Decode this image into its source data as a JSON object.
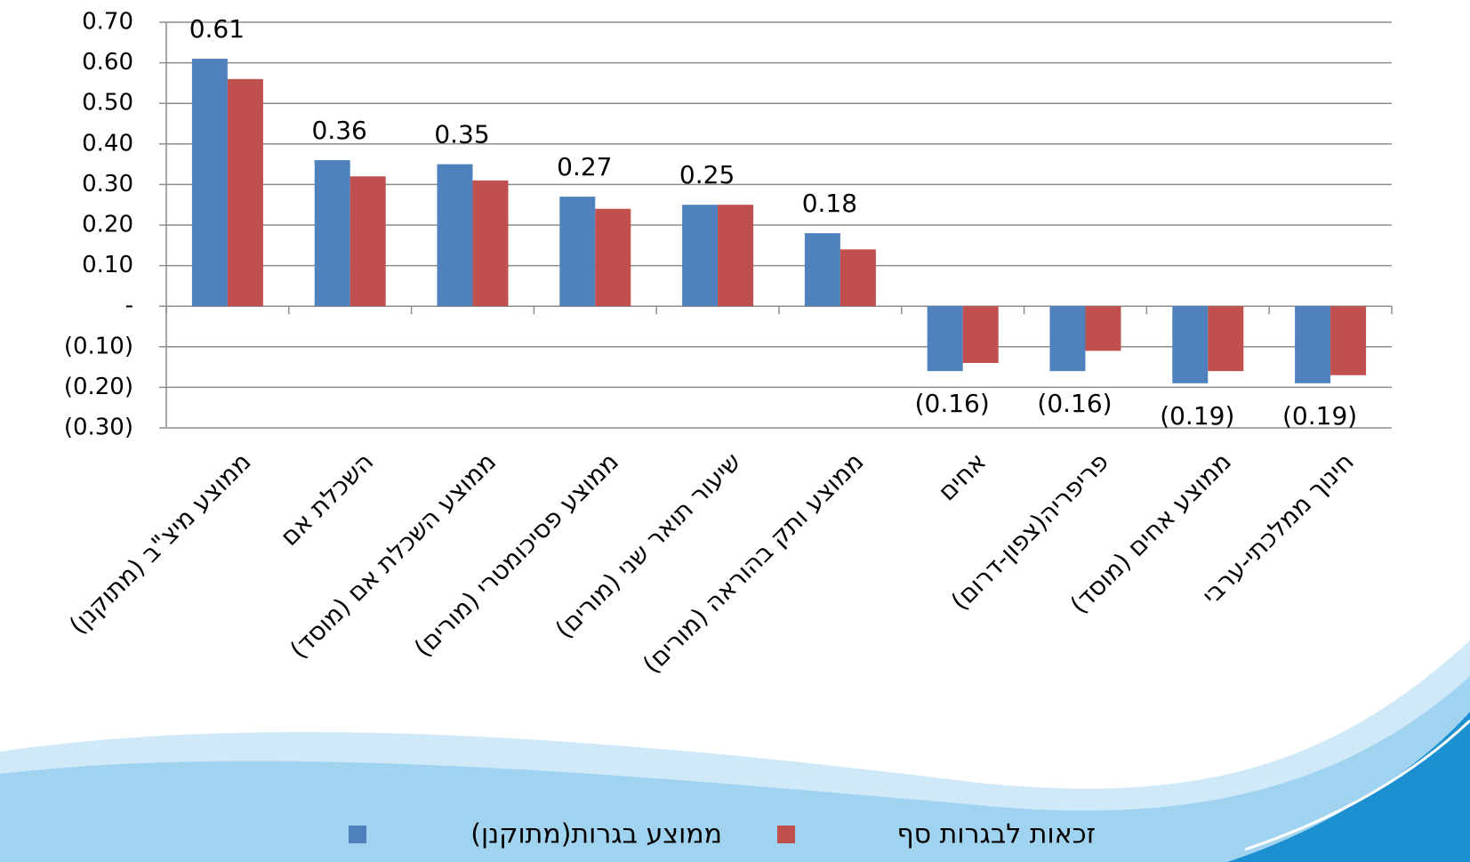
{
  "chart_data": {
    "type": "bar",
    "categories": [
      "ממוצע מיצ\"ב (מתוקנן)",
      "השכלת אם",
      "ממוצע השכלת אם (מוסד)",
      "ממוצע פסיכומטרי (מורים)",
      "שיעור תואר שני (מורים)",
      "ממוצע ותק בהוראה (מורים)",
      "אחים",
      "פריפריה(צפון-דרום)",
      "ממוצע אחים (מוסד)",
      "חינוך ממלכתי-ערבי"
    ],
    "series": [
      {
        "name": "ממוצע בגרות(מתוקנן)",
        "color": "#4f81bd",
        "values": [
          0.61,
          0.36,
          0.35,
          0.27,
          0.25,
          0.18,
          -0.16,
          -0.16,
          -0.19,
          -0.19
        ],
        "value_labels": [
          "0.61",
          "0.36",
          "0.35",
          "0.27",
          "0.25",
          "0.18",
          "(0.16)",
          "(0.16)",
          "(0.19)",
          "(0.19)"
        ]
      },
      {
        "name": "זכאות לבגרות סף",
        "color": "#c0504d",
        "values": [
          0.56,
          0.32,
          0.31,
          0.24,
          0.25,
          0.14,
          -0.14,
          -0.11,
          -0.16,
          -0.17
        ]
      }
    ],
    "ylim": [
      -0.3,
      0.7
    ],
    "yticks": [
      {
        "value": -0.3,
        "label": "(0.30)"
      },
      {
        "value": -0.2,
        "label": "(0.20)"
      },
      {
        "value": -0.1,
        "label": "(0.10)"
      },
      {
        "value": 0,
        "label": "-"
      },
      {
        "value": 0.1,
        "label": "0.10"
      },
      {
        "value": 0.2,
        "label": "0.20"
      },
      {
        "value": 0.3,
        "label": "0.30"
      },
      {
        "value": 0.4,
        "label": "0.40"
      },
      {
        "value": 0.5,
        "label": "0.50"
      },
      {
        "value": 0.6,
        "label": "0.60"
      },
      {
        "value": 0.7,
        "label": "0.70"
      }
    ],
    "grid": true,
    "legend": "bottom"
  }
}
